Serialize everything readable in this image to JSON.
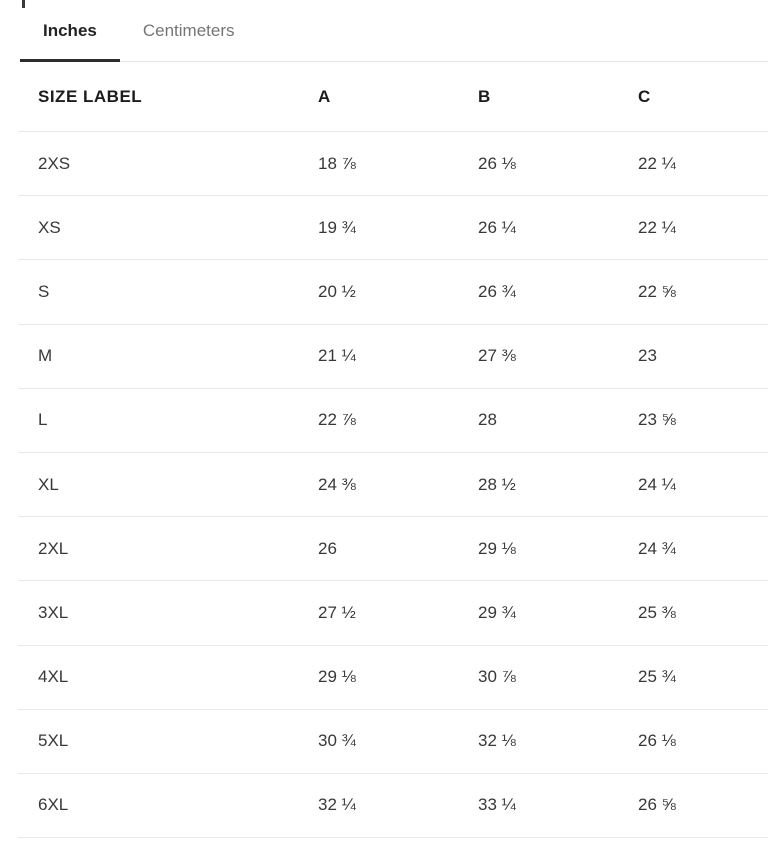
{
  "tab_bar": {
    "tabs": [
      {
        "label": "Inches",
        "active": true
      },
      {
        "label": "Centimeters",
        "active": false
      }
    ]
  },
  "size_table": {
    "headers": {
      "size": "SIZE LABEL",
      "a": "A",
      "b": "B",
      "c": "C"
    },
    "rows": [
      {
        "size": "2XS",
        "a": "18 ⅞",
        "b": "26 ⅛",
        "c": "22 ¼"
      },
      {
        "size": "XS",
        "a": "19 ¾",
        "b": "26 ¼",
        "c": "22 ¼"
      },
      {
        "size": "S",
        "a": "20 ½",
        "b": "26 ¾",
        "c": "22 ⅝"
      },
      {
        "size": "M",
        "a": "21 ¼",
        "b": "27 ⅜",
        "c": "23"
      },
      {
        "size": "L",
        "a": "22 ⅞",
        "b": "28",
        "c": "23 ⅝"
      },
      {
        "size": "XL",
        "a": "24 ⅜",
        "b": "28 ½",
        "c": "24 ¼"
      },
      {
        "size": "2XL",
        "a": "26",
        "b": "29 ⅛",
        "c": "24 ¾"
      },
      {
        "size": "3XL",
        "a": "27 ½",
        "b": "29 ¾",
        "c": "25 ⅜"
      },
      {
        "size": "4XL",
        "a": "29 ⅛",
        "b": "30 ⅞",
        "c": "25 ¾"
      },
      {
        "size": "5XL",
        "a": "30 ¾",
        "b": "32 ⅛",
        "c": "26 ⅛"
      },
      {
        "size": "6XL",
        "a": "32 ¼",
        "b": "33 ¼",
        "c": "26 ⅝"
      }
    ]
  },
  "colors": {
    "active_tab_text": "#222222",
    "inactive_tab_text": "#757575",
    "active_tab_underline": "#2d2d2d",
    "divider": "#e8e8e8",
    "header_text": "#1c1c1c",
    "body_text": "#383838"
  }
}
